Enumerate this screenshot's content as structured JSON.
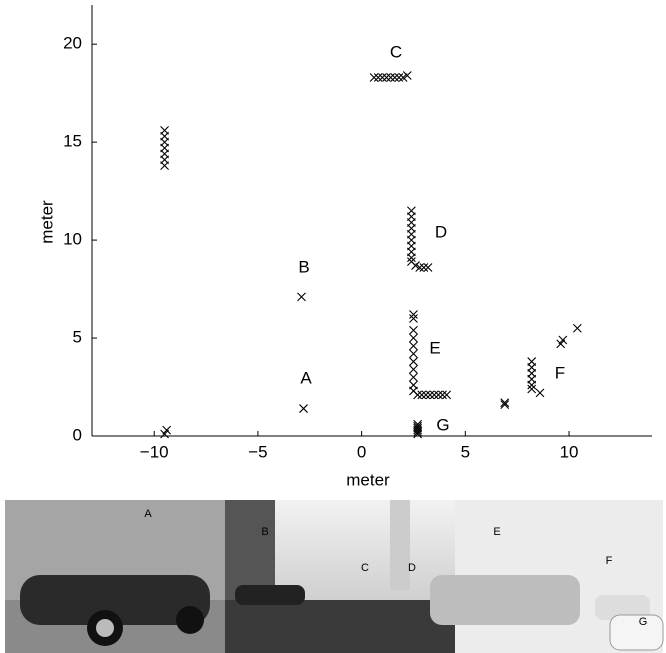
{
  "chart_data": {
    "type": "scatter",
    "xlabel": "meter",
    "ylabel": "meter",
    "xlim": [
      -13,
      14
    ],
    "ylim": [
      0,
      22
    ],
    "xticks": [
      {
        "value": -10,
        "label": "−10"
      },
      {
        "value": -5,
        "label": "−5"
      },
      0,
      5,
      10
    ],
    "yticks": [
      0,
      5,
      10,
      15,
      20
    ],
    "marker": "x",
    "color": "#000000",
    "x": [
      -9.5,
      -9.5,
      -9.5,
      -9.5,
      -9.5,
      -9.5,
      -9.5,
      -9.5,
      -9.4,
      -2.9,
      -2.8,
      0.6,
      0.8,
      1.0,
      1.2,
      1.4,
      1.6,
      1.8,
      2.0,
      2.2,
      2.4,
      2.4,
      2.4,
      2.4,
      2.4,
      2.4,
      2.4,
      2.4,
      2.4,
      2.4,
      2.6,
      2.8,
      3.0,
      3.2,
      2.5,
      2.5,
      2.5,
      2.5,
      2.5,
      2.5,
      2.5,
      2.5,
      2.5,
      2.5,
      2.5,
      2.7,
      2.9,
      3.1,
      3.3,
      3.5,
      3.7,
      3.9,
      4.1,
      2.7,
      2.7,
      2.7,
      2.7,
      2.7,
      2.7,
      6.9,
      6.9,
      8.2,
      8.2,
      8.2,
      8.2,
      8.2,
      8.2,
      8.6,
      9.6,
      9.7,
      10.4
    ],
    "y": [
      13.8,
      14.1,
      14.4,
      14.7,
      15.0,
      15.3,
      15.6,
      0.1,
      0.3,
      7.1,
      1.4,
      18.3,
      18.3,
      18.3,
      18.3,
      18.3,
      18.3,
      18.3,
      18.3,
      18.4,
      11.5,
      11.2,
      10.9,
      10.6,
      10.3,
      10.0,
      9.7,
      9.4,
      9.1,
      8.9,
      8.7,
      8.6,
      8.6,
      8.6,
      6.2,
      6.0,
      5.4,
      5.0,
      4.6,
      4.2,
      3.8,
      3.4,
      3.0,
      2.6,
      2.3,
      2.1,
      2.1,
      2.1,
      2.1,
      2.1,
      2.1,
      2.1,
      2.1,
      0.1,
      0.2,
      0.3,
      0.4,
      0.5,
      0.6,
      1.6,
      1.7,
      3.8,
      3.5,
      3.2,
      2.9,
      2.6,
      2.4,
      2.2,
      4.7,
      4.9,
      5.5
    ],
    "annotations": [
      "A",
      "B",
      "C",
      "D",
      "E",
      "F",
      "G"
    ]
  },
  "photo": {
    "labels": [
      "A",
      "B",
      "C",
      "D",
      "E",
      "F",
      "G"
    ]
  }
}
